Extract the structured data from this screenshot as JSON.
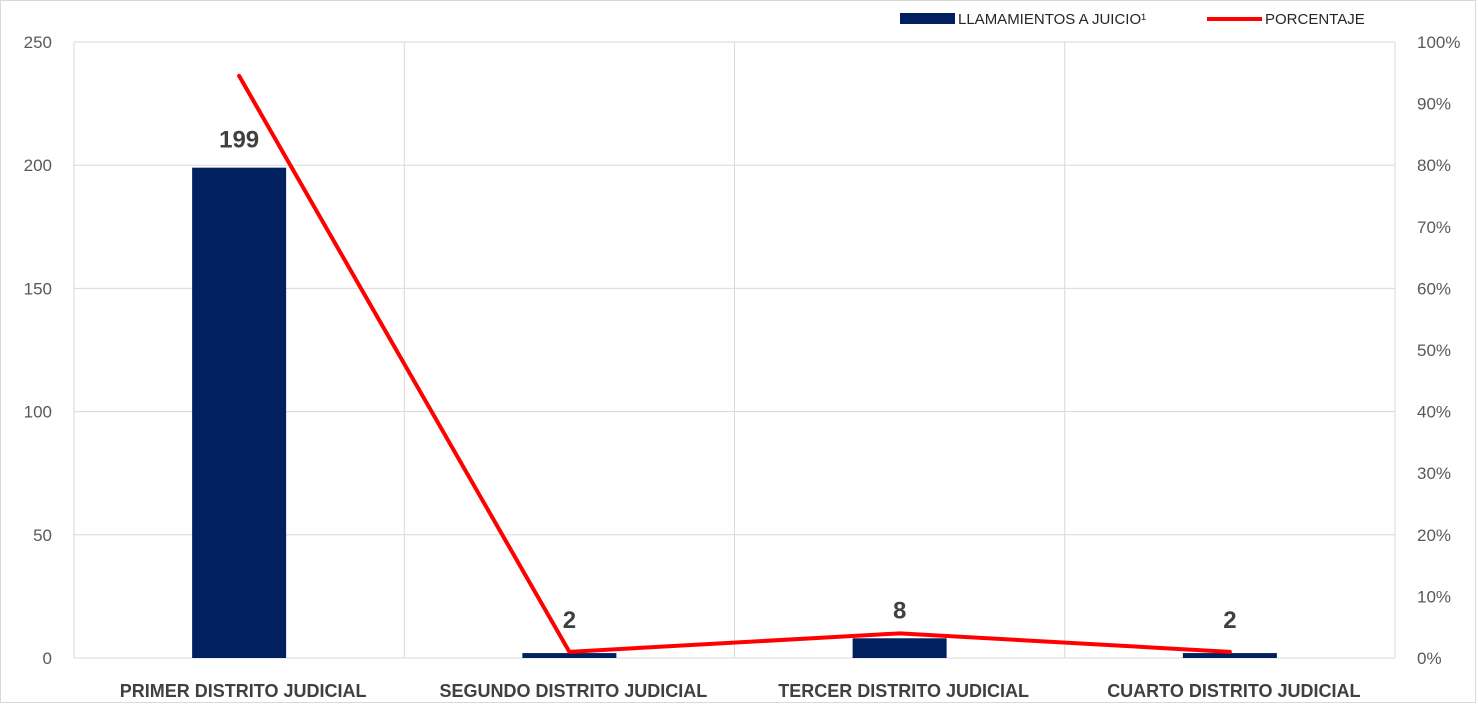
{
  "chart_data": {
    "type": "bar",
    "categories": [
      "PRIMER DISTRITO JUDICIAL",
      "SEGUNDO DISTRITO JUDICIAL",
      "TERCER DISTRITO JUDICIAL",
      "CUARTO DISTRITO JUDICIAL"
    ],
    "series": [
      {
        "name": "LLAMAMIENTOS A JUICIO¹",
        "type": "bar",
        "axis": "left",
        "color": "#002060",
        "values": [
          199,
          2,
          8,
          2
        ]
      },
      {
        "name": "PORCENTAJE",
        "type": "line",
        "axis": "right",
        "color": "#ff0000",
        "values": [
          0.945,
          0.01,
          0.04,
          0.01
        ]
      }
    ],
    "data_labels": [
      "199",
      "2",
      "8",
      "2"
    ],
    "y_left": {
      "min": 0,
      "max": 250,
      "ticks": [
        0,
        50,
        100,
        150,
        200,
        250
      ],
      "tick_labels": [
        "0",
        "50",
        "100",
        "150",
        "200",
        "250"
      ]
    },
    "y_right": {
      "min": 0,
      "max": 1,
      "ticks": [
        0,
        0.1,
        0.2,
        0.3,
        0.4,
        0.5,
        0.6,
        0.7,
        0.8,
        0.9,
        1.0
      ],
      "tick_labels": [
        "0%",
        "10%",
        "20%",
        "30%",
        "40%",
        "50%",
        "60%",
        "70%",
        "80%",
        "90%",
        "100%"
      ]
    },
    "grid": true,
    "legend": {
      "position": "top-right",
      "entries": [
        "LLAMAMIENTOS A JUICIO¹",
        "PORCENTAJE"
      ]
    }
  }
}
